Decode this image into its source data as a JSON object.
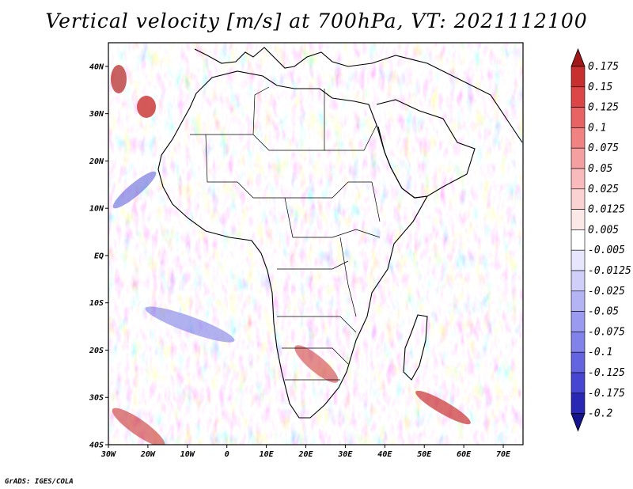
{
  "title": "Vertical velocity [m/s] at 700hPa, VT: 2021112100",
  "credit": "GrADS: IGES/COLA",
  "map": {
    "lat_labels": [
      "40N",
      "30N",
      "20N",
      "10N",
      "EQ",
      "10S",
      "20S",
      "30S",
      "40S"
    ],
    "lon_labels": [
      "30W",
      "20W",
      "10W",
      "0",
      "10E",
      "20E",
      "30E",
      "40E",
      "50E",
      "60E",
      "70E"
    ],
    "lat_range": [
      -40,
      45
    ],
    "lon_range": [
      -30,
      75
    ]
  },
  "colorbar": {
    "levels": [
      "0.175",
      "0.15",
      "0.125",
      "0.1",
      "0.075",
      "0.05",
      "0.025",
      "0.0125",
      "0.005",
      "-0.005",
      "-0.0125",
      "-0.025",
      "-0.05",
      "-0.075",
      "-0.1",
      "-0.125",
      "-0.175",
      "-0.2"
    ],
    "colors": [
      "#a01818",
      "#c83030",
      "#dc4646",
      "#e86464",
      "#f08282",
      "#f5a0a0",
      "#f8baba",
      "#fbd2d2",
      "#fde8e8",
      "#ffffff",
      "#e6e6fc",
      "#cfcffa",
      "#b4b4f5",
      "#9a9af0",
      "#8282eb",
      "#6464e0",
      "#4646d2",
      "#2828b4",
      "#14148c"
    ]
  }
}
